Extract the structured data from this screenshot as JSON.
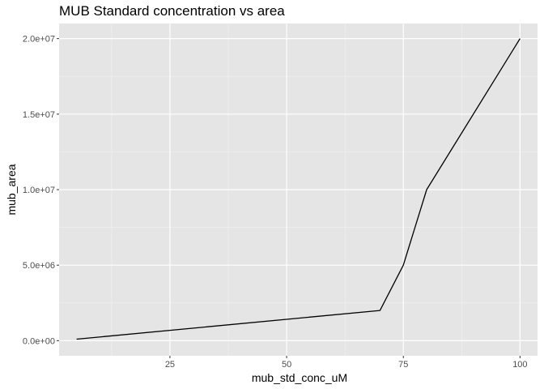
{
  "chart_data": {
    "type": "line",
    "title": "MUB Standard concentration vs area",
    "xlabel": "mub_std_conc_uM",
    "ylabel": "mub_area",
    "xlim": [
      1.25,
      103.75
    ],
    "ylim": [
      -1000000,
      21000000
    ],
    "x_ticks": [
      25,
      50,
      75,
      100
    ],
    "x_tick_labels": [
      "25",
      "50",
      "75",
      "100"
    ],
    "y_ticks": [
      0,
      5000000,
      10000000,
      15000000,
      20000000
    ],
    "y_tick_labels": [
      "0.0e+00",
      "5.0e+06",
      "1.0e+07",
      "1.5e+07",
      "2.0e+07"
    ],
    "grid": true,
    "background": "#e5e5e5",
    "line_color": "#000000",
    "series": [
      {
        "x": [
          5,
          70,
          75,
          80,
          100
        ],
        "y": [
          100000,
          2000000,
          5000000,
          10000000,
          20000000
        ]
      }
    ]
  }
}
